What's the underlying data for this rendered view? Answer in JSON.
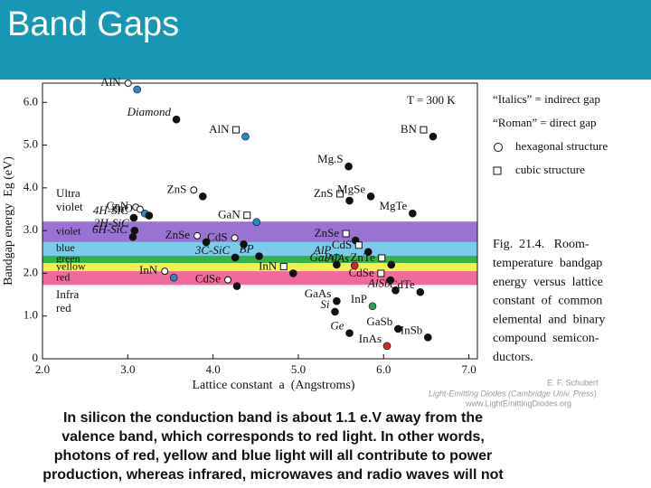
{
  "title": "Band Gaps",
  "chart_data": {
    "type": "scatter",
    "xlabel": "Lattice constant  a  (Angstroms)",
    "ylabel": "Bandgap energy  Eg (eV)",
    "xlim": [
      2,
      7.1
    ],
    "ylim": [
      0,
      6.45
    ],
    "xticks": [
      {
        "value": 2,
        "label": "2.0"
      },
      {
        "value": 3,
        "label": "3.0"
      },
      {
        "value": 4,
        "label": "4.0"
      },
      {
        "value": 5,
        "label": "5.0"
      },
      {
        "value": 6,
        "label": "6.0"
      },
      {
        "value": 7,
        "label": "7.0"
      }
    ],
    "yticks": [
      0,
      {
        "value": 1,
        "label": "1.0"
      },
      {
        "value": 2,
        "label": "2.0"
      },
      {
        "value": 3,
        "label": "3.0"
      },
      {
        "value": 4,
        "label": "4.0"
      },
      {
        "value": 5,
        "label": "5.0"
      },
      {
        "value": 6,
        "label": "6.0"
      }
    ],
    "annotation": "T = 300 K",
    "bands": [
      {
        "name": "violet",
        "range": [
          2.73,
          3.21
        ],
        "color": "#9a72d2"
      },
      {
        "name": "blue",
        "range": [
          2.41,
          2.73
        ],
        "color": "#7ccbea"
      },
      {
        "name": "green",
        "range": [
          2.24,
          2.41
        ],
        "color": "#35b24c"
      },
      {
        "name": "yellow",
        "range": [
          2.05,
          2.24
        ],
        "color": "#f3f24a"
      },
      {
        "name": "red",
        "range": [
          1.73,
          2.05
        ],
        "color": "#f06b9c"
      }
    ],
    "uv_label": [
      "Ultra",
      "violet"
    ],
    "ir_label": [
      "Infra",
      "red"
    ],
    "points": [
      {
        "label": "AlN",
        "x": 3.11,
        "y": 6.3,
        "color": "#2e86c1",
        "marker": "hex"
      },
      {
        "label": "Diamond",
        "x": 3.57,
        "y": 5.6,
        "color": "#111111",
        "italic": true
      },
      {
        "label": "AlN",
        "x": 4.38,
        "y": 5.2,
        "color": "#2e86c1",
        "marker": "cube"
      },
      {
        "label": "BN",
        "x": 6.58,
        "y": 5.2,
        "color": "#111111",
        "marker": "cube"
      },
      {
        "label": "Mg.S",
        "x": 5.59,
        "y": 4.5,
        "color": "#111111"
      },
      {
        "label": "ZnS",
        "x": 3.88,
        "y": 3.8,
        "color": "#111111",
        "marker": "hex"
      },
      {
        "label": "ZnS",
        "x": 5.6,
        "y": 3.7,
        "color": "#111111",
        "marker": "cube"
      },
      {
        "label": "MgSe",
        "x": 5.85,
        "y": 3.8,
        "color": "#111111"
      },
      {
        "label": "GaN",
        "x": 3.2,
        "y": 3.4,
        "color": "#2e86c1",
        "marker": "hex"
      },
      {
        "label": "ZnO",
        "x": 3.25,
        "y": 3.35,
        "color": "#111111",
        "marker": "hex"
      },
      {
        "label": "GaN",
        "x": 4.51,
        "y": 3.2,
        "color": "#2e86c1",
        "marker": "cube"
      },
      {
        "label": "MgTe",
        "x": 6.34,
        "y": 3.4,
        "color": "#111111"
      },
      {
        "label": "4H-SiC",
        "x": 3.07,
        "y": 3.3,
        "color": "#111111",
        "italic": true
      },
      {
        "label": "2H-SiC",
        "x": 3.08,
        "y": 3.0,
        "color": "#111111",
        "italic": true
      },
      {
        "label": "6H-SiC",
        "x": 3.06,
        "y": 2.85,
        "color": "#111111",
        "italic": true
      },
      {
        "label": "ZnSe",
        "x": 3.92,
        "y": 2.73,
        "color": "#111111",
        "marker": "hex"
      },
      {
        "label": "CdS",
        "x": 4.36,
        "y": 2.68,
        "color": "#111111",
        "marker": "hex"
      },
      {
        "label": "ZnSe",
        "x": 5.67,
        "y": 2.77,
        "color": "#111111",
        "marker": "cube"
      },
      {
        "label": "BP",
        "x": 4.54,
        "y": 2.4,
        "color": "#111111",
        "italic": true
      },
      {
        "label": "CdS",
        "x": 5.82,
        "y": 2.5,
        "color": "#111111",
        "marker": "cube"
      },
      {
        "label": "3C-SiC",
        "x": 4.26,
        "y": 2.37,
        "color": "#111111",
        "italic": true
      },
      {
        "label": "AlP",
        "x": 5.45,
        "y": 2.37,
        "color": "#2e9e4f",
        "italic": true
      },
      {
        "label": "GaP",
        "x": 5.45,
        "y": 2.2,
        "color": "#111111",
        "italic": true
      },
      {
        "label": "ZnTe",
        "x": 6.09,
        "y": 2.2,
        "color": "#111111",
        "marker": "cube"
      },
      {
        "label": "InN",
        "x": 3.54,
        "y": 1.9,
        "color": "#2e86c1",
        "marker": "hex"
      },
      {
        "label": "InN",
        "x": 4.94,
        "y": 2.0,
        "color": "#111111",
        "marker": "cube"
      },
      {
        "label": "AlAs",
        "x": 5.66,
        "y": 2.18,
        "color": "#d62728",
        "italic": true
      },
      {
        "label": "CdSe",
        "x": 4.28,
        "y": 1.7,
        "color": "#111111",
        "marker": "hex"
      },
      {
        "label": "CdSe",
        "x": 6.08,
        "y": 1.84,
        "color": "#111111",
        "marker": "cube"
      },
      {
        "label": "GaAs",
        "x": 5.45,
        "y": 1.35,
        "color": "#111111"
      },
      {
        "label": "Si",
        "x": 5.43,
        "y": 1.1,
        "color": "#111111",
        "italic": true
      },
      {
        "label": "InP",
        "x": 5.87,
        "y": 1.23,
        "color": "#2e9e4f"
      },
      {
        "label": "AlSb",
        "x": 6.14,
        "y": 1.6,
        "color": "#111111",
        "italic": true
      },
      {
        "label": "CdTe",
        "x": 6.43,
        "y": 1.56,
        "color": "#111111"
      },
      {
        "label": "Ge",
        "x": 5.6,
        "y": 0.6,
        "color": "#111111",
        "italic": true
      },
      {
        "label": "InAs",
        "x": 6.04,
        "y": 0.3,
        "color": "#d62728"
      },
      {
        "label": "GaSb",
        "x": 6.17,
        "y": 0.7,
        "color": "#111111"
      },
      {
        "label": "InSb",
        "x": 6.52,
        "y": 0.5,
        "color": "#111111"
      }
    ]
  },
  "legend": {
    "italics": "“Italics” = indirect gap",
    "roman": "“Roman” = direct gap",
    "hex": "hexagonal structure",
    "cube": "cubic structure"
  },
  "figure_caption": [
    "Fig.  21.4.   Room-",
    "temperature  bandgap",
    "energy  versus  lattice",
    "constant  of  common",
    "elemental  and  binary",
    "compound  semicon-",
    "ductors."
  ],
  "credit": {
    "author": "E. F. Schubert",
    "book": "Light-Emitting Diodes (Cambridge Univ. Press)",
    "url": "www.LightEmittingDiodes.org"
  },
  "caption": [
    "In silicon the conduction band is about 1.1 e.V away from the",
    "valence band, which corresponds to red light. In other words,",
    "photons of red, yellow and blue light will all contribute to power",
    "production, whereas infrared, microwaves and radio waves will not"
  ]
}
